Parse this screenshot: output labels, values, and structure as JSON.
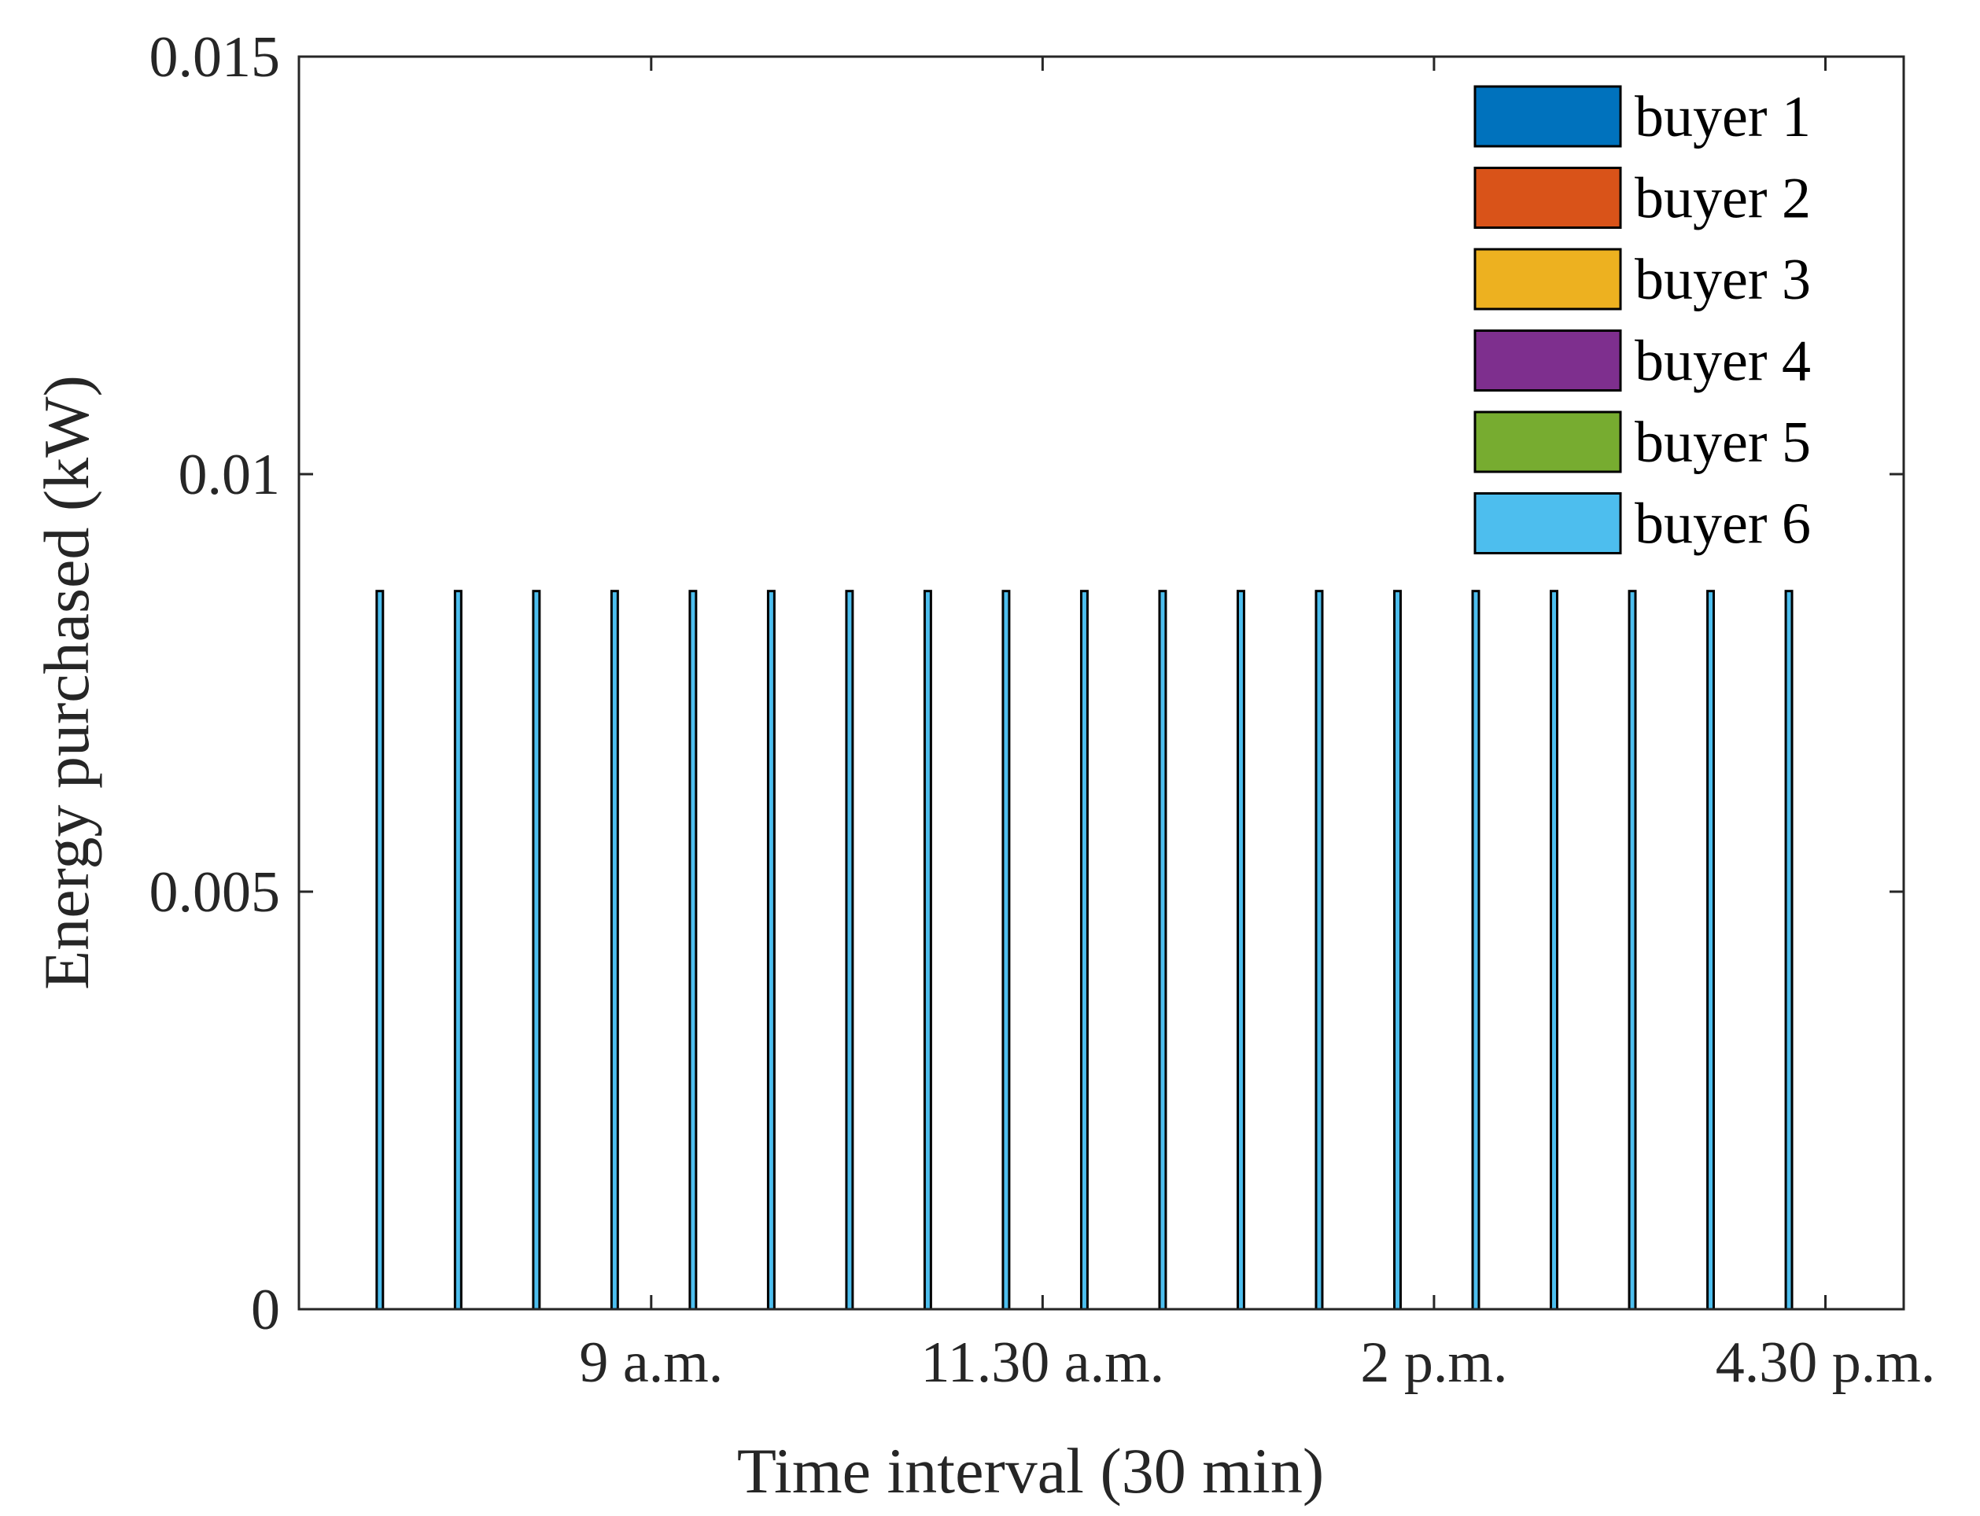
{
  "chart_data": {
    "type": "bar",
    "xlabel": "Time interval (30 min)",
    "ylabel": "Energy purchased (kW)",
    "ylim": [
      0,
      0.015
    ],
    "xlim": [
      0.3,
      20.8
    ],
    "yticks": [
      {
        "value": 0,
        "label": "0"
      },
      {
        "value": 0.005,
        "label": "0.005"
      },
      {
        "value": 0.01,
        "label": "0.01"
      },
      {
        "value": 0.015,
        "label": "0.015"
      }
    ],
    "xticks": [
      {
        "value": 4.8,
        "label": "9 a.m."
      },
      {
        "value": 9.8,
        "label": "11.30 a.m."
      },
      {
        "value": 14.8,
        "label": "2 p.m."
      },
      {
        "value": 19.8,
        "label": "4.30 p.m."
      }
    ],
    "x": [
      1,
      2,
      3,
      4,
      5,
      6,
      7,
      8,
      9,
      10,
      11,
      12,
      13,
      14,
      15,
      16,
      17,
      18,
      19
    ],
    "series": [
      {
        "name": "buyer 1",
        "color": "#0072BD",
        "values": [
          0,
          0,
          0,
          0,
          0,
          0,
          0,
          0,
          0,
          0,
          0,
          0,
          0,
          0,
          0,
          0,
          0,
          0,
          0
        ]
      },
      {
        "name": "buyer 2",
        "color": "#D95319",
        "values": [
          0,
          0,
          0,
          0,
          0,
          0,
          0,
          0,
          0,
          0,
          0,
          0,
          0,
          0,
          0,
          0,
          0,
          0,
          0
        ]
      },
      {
        "name": "buyer 3",
        "color": "#EDB120",
        "values": [
          0,
          0,
          0,
          0,
          0,
          0,
          0,
          0,
          0,
          0,
          0,
          0,
          0,
          0,
          0,
          0,
          0,
          0,
          0
        ]
      },
      {
        "name": "buyer 4",
        "color": "#7E2F8E",
        "values": [
          0,
          0,
          0,
          0,
          0,
          0,
          0,
          0,
          0,
          0,
          0,
          0,
          0,
          0,
          0,
          0,
          0,
          0,
          0
        ]
      },
      {
        "name": "buyer 5",
        "color": "#77AC30",
        "values": [
          0,
          0,
          0,
          0,
          0,
          0,
          0,
          0,
          0,
          0,
          0,
          0,
          0,
          0,
          0,
          0,
          0,
          0,
          0
        ]
      },
      {
        "name": "buyer 6",
        "color": "#4DBEEE",
        "values": [
          0.0086,
          0.0086,
          0.0086,
          0.0086,
          0.0086,
          0.0086,
          0.0086,
          0.0086,
          0.0086,
          0.0086,
          0.0086,
          0.0086,
          0.0086,
          0.0086,
          0.0086,
          0.0086,
          0.0086,
          0.0086,
          0.0086
        ]
      }
    ],
    "legend_position": "top-right",
    "grid": false
  }
}
